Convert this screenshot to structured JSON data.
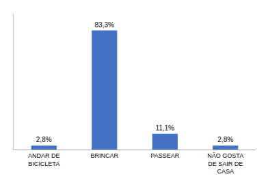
{
  "chart_data": {
    "type": "bar",
    "categories": [
      "ANDAR DE\nBICICLETA",
      "BRINCAR",
      "PASSEAR",
      "NÃO GOSTA\nDE SAIR DE\nCASA"
    ],
    "values": [
      2.8,
      83.3,
      11.1,
      2.8
    ],
    "value_labels": [
      "2,8%",
      "83,3%",
      "11,1%",
      "2,8%"
    ],
    "data_labels": true,
    "color": "#4472C4",
    "ylim": [
      0,
      95
    ],
    "tick_labels": "x",
    "grid": false
  }
}
